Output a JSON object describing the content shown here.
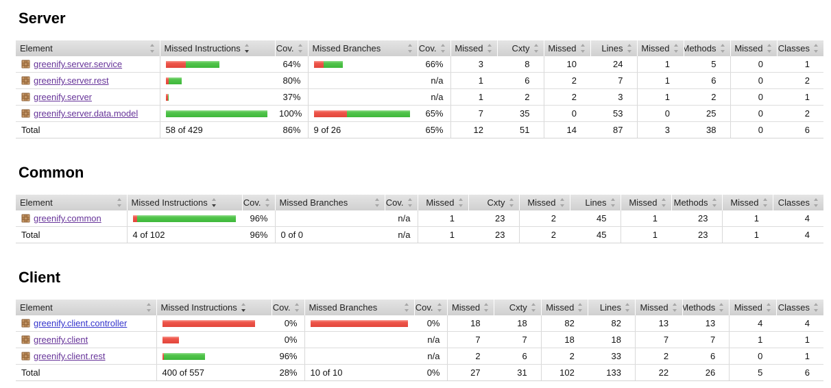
{
  "colors": {
    "bar_red": "#e8473e",
    "bar_green": "#47b843",
    "link_visited": "#663399",
    "link_new": "#3333cc",
    "header_bg": "#d6d6d6"
  },
  "columns": [
    {
      "label": "Element",
      "type": "element",
      "field": "name"
    },
    {
      "label": "Missed Instructions",
      "type": "bar",
      "field": "instr_bar",
      "sorted": true
    },
    {
      "label": "Cov.",
      "type": "cov",
      "field": "instr_cov"
    },
    {
      "label": "Missed Branches",
      "type": "bar",
      "field": "branch_bar"
    },
    {
      "label": "Cov.",
      "type": "cov",
      "field": "branch_cov"
    },
    {
      "label": "Missed",
      "type": "num",
      "field": "missed_cxty"
    },
    {
      "label": "Cxty",
      "type": "num",
      "field": "cxty"
    },
    {
      "label": "Missed",
      "type": "num",
      "field": "missed_lines"
    },
    {
      "label": "Lines",
      "type": "num",
      "field": "lines"
    },
    {
      "label": "Missed",
      "type": "num",
      "field": "missed_methods"
    },
    {
      "label": "Methods",
      "type": "num",
      "field": "methods"
    },
    {
      "label": "Missed",
      "type": "num",
      "field": "missed_classes"
    },
    {
      "label": "Classes",
      "type": "num",
      "field": "classes"
    }
  ],
  "sections": [
    {
      "title": "Server",
      "rows": [
        {
          "name": "greenify.server.service",
          "link": "visited",
          "instr_bar": {
            "red": 29,
            "green": 49
          },
          "instr_cov": "64%",
          "branch_bar": {
            "red": 14,
            "green": 28
          },
          "branch_cov": "66%",
          "missed_cxty": 3,
          "cxty": 8,
          "missed_lines": 10,
          "lines": 24,
          "missed_methods": 1,
          "methods": 5,
          "missed_classes": 0,
          "classes": 1
        },
        {
          "name": "greenify.server.rest",
          "link": "visited",
          "instr_bar": {
            "red": 4,
            "green": 19
          },
          "instr_cov": "80%",
          "branch_bar": {
            "red": 0,
            "green": 0
          },
          "branch_cov": "n/a",
          "missed_cxty": 1,
          "cxty": 6,
          "missed_lines": 2,
          "lines": 7,
          "missed_methods": 1,
          "methods": 6,
          "missed_classes": 0,
          "classes": 2
        },
        {
          "name": "greenify.server",
          "link": "visited",
          "instr_bar": {
            "red": 3,
            "green": 1
          },
          "instr_cov": "37%",
          "branch_bar": {
            "red": 0,
            "green": 0
          },
          "branch_cov": "n/a",
          "missed_cxty": 1,
          "cxty": 2,
          "missed_lines": 2,
          "lines": 3,
          "missed_methods": 1,
          "methods": 2,
          "missed_classes": 0,
          "classes": 1
        },
        {
          "name": "greenify.server.data.model",
          "link": "visited",
          "instr_bar": {
            "red": 0,
            "green": 148
          },
          "instr_cov": "100%",
          "branch_bar": {
            "red": 48,
            "green": 92
          },
          "branch_cov": "65%",
          "missed_cxty": 7,
          "cxty": 35,
          "missed_lines": 0,
          "lines": 53,
          "missed_methods": 0,
          "methods": 25,
          "missed_classes": 0,
          "classes": 2
        }
      ],
      "total": {
        "name": "Total",
        "instr_bar": "58 of 429",
        "instr_cov": "86%",
        "branch_bar": "9 of 26",
        "branch_cov": "65%",
        "missed_cxty": 12,
        "cxty": 51,
        "missed_lines": 14,
        "lines": 87,
        "missed_methods": 3,
        "methods": 38,
        "missed_classes": 0,
        "classes": 6
      }
    },
    {
      "title": "Common",
      "rows": [
        {
          "name": "greenify.common",
          "link": "visited",
          "instr_bar": {
            "red": 6,
            "green": 144
          },
          "instr_cov": "96%",
          "branch_bar": {
            "red": 0,
            "green": 0
          },
          "branch_cov": "n/a",
          "missed_cxty": 1,
          "cxty": 23,
          "missed_lines": 2,
          "lines": 45,
          "missed_methods": 1,
          "methods": 23,
          "missed_classes": 1,
          "classes": 4
        }
      ],
      "total": {
        "name": "Total",
        "instr_bar": "4 of 102",
        "instr_cov": "96%",
        "branch_bar": "0 of 0",
        "branch_cov": "n/a",
        "missed_cxty": 1,
        "cxty": 23,
        "missed_lines": 2,
        "lines": 45,
        "missed_methods": 1,
        "methods": 23,
        "missed_classes": 1,
        "classes": 4
      }
    },
    {
      "title": "Client",
      "rows": [
        {
          "name": "greenify.client.controller",
          "link": "new",
          "instr_bar": {
            "red": 135,
            "green": 0
          },
          "instr_cov": "0%",
          "branch_bar": {
            "red": 142,
            "green": 0
          },
          "branch_cov": "0%",
          "missed_cxty": 18,
          "cxty": 18,
          "missed_lines": 82,
          "lines": 82,
          "missed_methods": 13,
          "methods": 13,
          "missed_classes": 4,
          "classes": 4
        },
        {
          "name": "greenify.client",
          "link": "visited",
          "instr_bar": {
            "red": 24,
            "green": 0
          },
          "instr_cov": "0%",
          "branch_bar": {
            "red": 0,
            "green": 0
          },
          "branch_cov": "n/a",
          "missed_cxty": 7,
          "cxty": 7,
          "missed_lines": 18,
          "lines": 18,
          "missed_methods": 7,
          "methods": 7,
          "missed_classes": 1,
          "classes": 1
        },
        {
          "name": "greenify.client.rest",
          "link": "visited",
          "instr_bar": {
            "red": 2,
            "green": 60
          },
          "instr_cov": "96%",
          "branch_bar": {
            "red": 0,
            "green": 0
          },
          "branch_cov": "n/a",
          "missed_cxty": 2,
          "cxty": 6,
          "missed_lines": 2,
          "lines": 33,
          "missed_methods": 2,
          "methods": 6,
          "missed_classes": 0,
          "classes": 1
        }
      ],
      "total": {
        "name": "Total",
        "instr_bar": "400 of 557",
        "instr_cov": "28%",
        "branch_bar": "10 of 10",
        "branch_cov": "0%",
        "missed_cxty": 27,
        "cxty": 31,
        "missed_lines": 102,
        "lines": 133,
        "missed_methods": 22,
        "methods": 26,
        "missed_classes": 5,
        "classes": 6
      }
    }
  ]
}
